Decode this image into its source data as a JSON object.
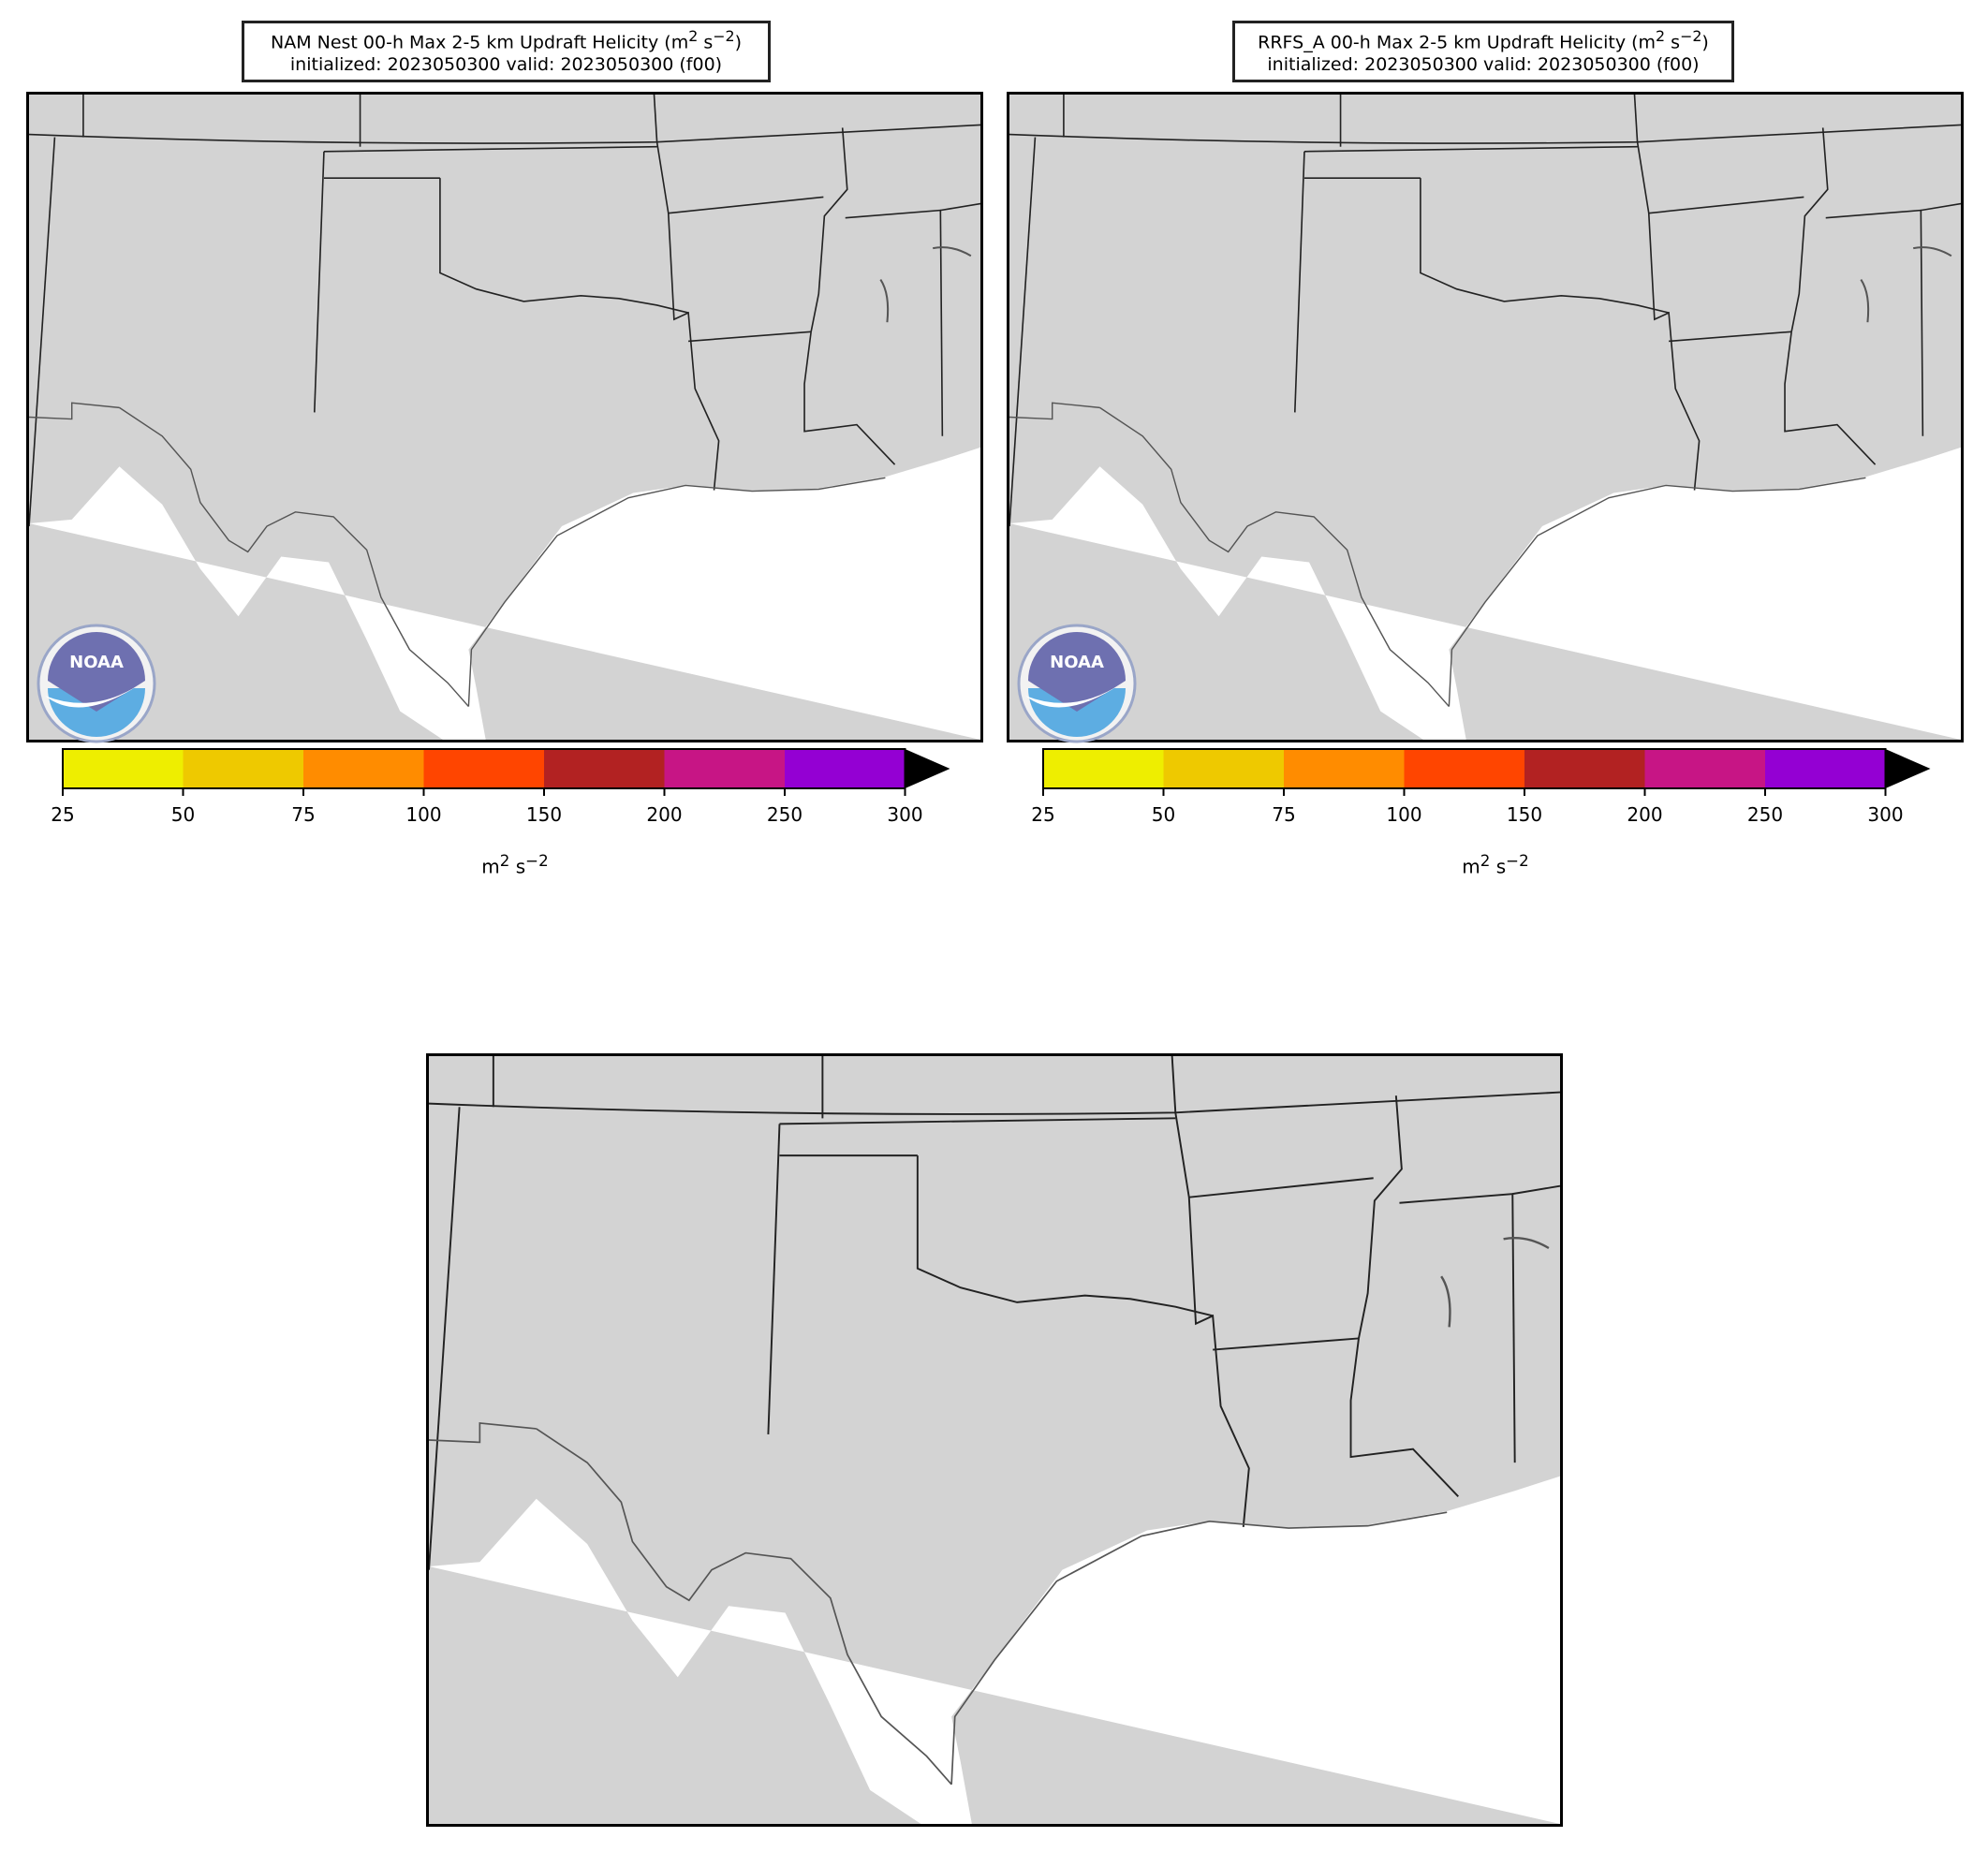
{
  "panels": [
    {
      "title_line1": "NAM Nest 00-h Max 2-5 km Updraft Helicity (m",
      "title_sup1": "2",
      "title_mid": " s",
      "title_sup2": "−2",
      "title_end": ")",
      "title_line2": "initialized: 2023050300 valid: 2023050300 (f00)"
    },
    {
      "title_line1": "RRFS_A 00-h Max 2-5 km Updraft Helicity (m",
      "title_sup1": "2",
      "title_mid": " s",
      "title_sup2": "−2",
      "title_end": ")",
      "title_line2": "initialized: 2023050300 valid: 2023050300 (f00)"
    }
  ],
  "colorbar": {
    "ticks": [
      "25",
      "50",
      "75",
      "100",
      "150",
      "200",
      "250",
      "300"
    ],
    "colors": [
      "#eeee00",
      "#eec900",
      "#ff8c00",
      "#ff4500",
      "#b22222",
      "#c71585",
      "#9400d3"
    ],
    "extend_color": "#000000",
    "label_base": "m",
    "label_sup1": "2",
    "label_mid": " s",
    "label_sup2": "−2"
  },
  "logo": {
    "name": "NOAA"
  },
  "map_colors": {
    "land": "#d3d3d3",
    "water": "#ffffff",
    "borders": "#222222",
    "coast": "#555555"
  }
}
